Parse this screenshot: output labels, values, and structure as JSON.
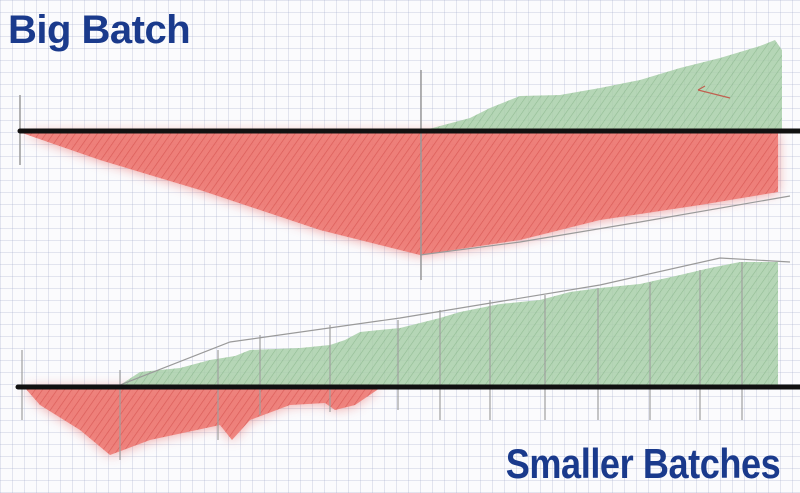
{
  "diagram": {
    "top_label": "Big Batch",
    "bottom_label": "Smaller Batches",
    "colors": {
      "heading": "#1a3a8c",
      "loss_fill": "#e24a45",
      "gain_fill": "#6fa872",
      "baseline": "#111111",
      "pencil": "#9a9a9a"
    }
  }
}
